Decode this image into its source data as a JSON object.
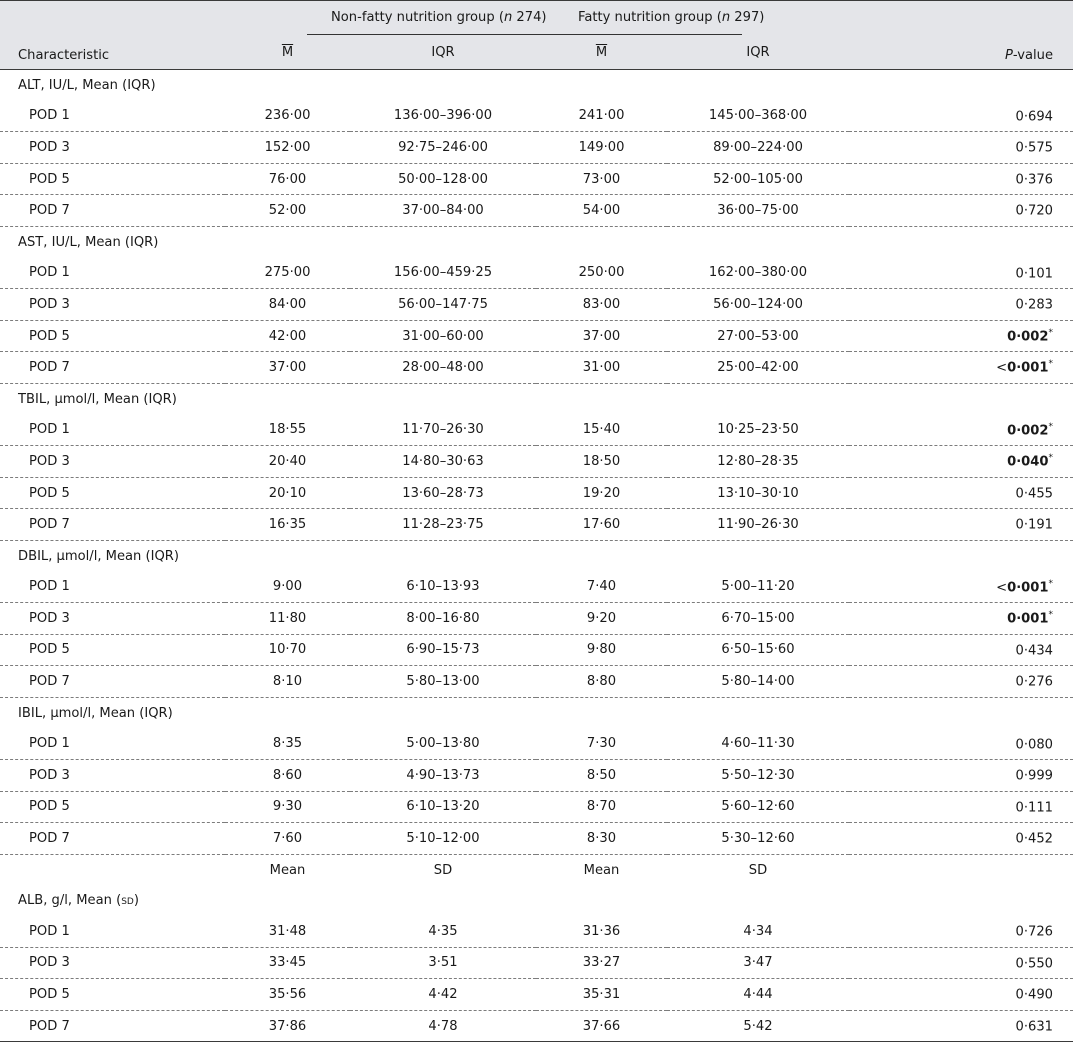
{
  "header": {
    "characteristic": "Characteristic",
    "group1": {
      "name": "Non-fatty nutrition group (",
      "n_label": "n",
      "n_value": " 274)"
    },
    "group2": {
      "name": "Fatty nutrition group (",
      "n_label": "n",
      "n_value": " 297)"
    },
    "sub_m": "M",
    "sub_iqr": "IQR",
    "pvalue_italic": "P",
    "pvalue_rest": "-value"
  },
  "sections": [
    {
      "label": "ALT, IU/L, Mean (IQR)",
      "rows": [
        {
          "label": "POD 1",
          "m1": "236·00",
          "iqr1": "136·00–396·00",
          "m2": "241·00",
          "iqr2": "145·00–368·00",
          "lt": "",
          "p": "0·694",
          "sig": false,
          "star": ""
        },
        {
          "label": "POD 3",
          "m1": "152·00",
          "iqr1": "92·75–246·00",
          "m2": "149·00",
          "iqr2": "89·00–224·00",
          "lt": "",
          "p": "0·575",
          "sig": false,
          "star": ""
        },
        {
          "label": "POD 5",
          "m1": "76·00",
          "iqr1": "50·00–128·00",
          "m2": "73·00",
          "iqr2": "52·00–105·00",
          "lt": "",
          "p": "0·376",
          "sig": false,
          "star": ""
        },
        {
          "label": "POD 7",
          "m1": "52·00",
          "iqr1": "37·00–84·00",
          "m2": "54·00",
          "iqr2": "36·00–75·00",
          "lt": "",
          "p": "0·720",
          "sig": false,
          "star": ""
        }
      ]
    },
    {
      "label": "AST, IU/L, Mean (IQR)",
      "rows": [
        {
          "label": "POD 1",
          "m1": "275·00",
          "iqr1": "156·00–459·25",
          "m2": "250·00",
          "iqr2": "162·00–380·00",
          "lt": "",
          "p": "0·101",
          "sig": false,
          "star": ""
        },
        {
          "label": "POD 3",
          "m1": "84·00",
          "iqr1": "56·00–147·75",
          "m2": "83·00",
          "iqr2": "56·00–124·00",
          "lt": "",
          "p": "0·283",
          "sig": false,
          "star": ""
        },
        {
          "label": "POD 5",
          "m1": "42·00",
          "iqr1": "31·00–60·00",
          "m2": "37·00",
          "iqr2": "27·00–53·00",
          "lt": "",
          "p": "0·002",
          "sig": true,
          "star": "*"
        },
        {
          "label": "POD 7",
          "m1": "37·00",
          "iqr1": "28·00–48·00",
          "m2": "31·00",
          "iqr2": "25·00–42·00",
          "lt": "<",
          "p": "0·001",
          "sig": true,
          "star": "*"
        }
      ]
    },
    {
      "label": "TBIL, µmol/l, Mean (IQR)",
      "rows": [
        {
          "label": "POD 1",
          "m1": "18·55",
          "iqr1": "11·70–26·30",
          "m2": "15·40",
          "iqr2": "10·25–23·50",
          "lt": "",
          "p": "0·002",
          "sig": true,
          "star": "*"
        },
        {
          "label": "POD 3",
          "m1": "20·40",
          "iqr1": "14·80–30·63",
          "m2": "18·50",
          "iqr2": "12·80–28·35",
          "lt": "",
          "p": "0·040",
          "sig": true,
          "star": "*"
        },
        {
          "label": "POD 5",
          "m1": "20·10",
          "iqr1": "13·60–28·73",
          "m2": "19·20",
          "iqr2": "13·10–30·10",
          "lt": "",
          "p": "0·455",
          "sig": false,
          "star": ""
        },
        {
          "label": "POD 7",
          "m1": "16·35",
          "iqr1": "11·28–23·75",
          "m2": "17·60",
          "iqr2": "11·90–26·30",
          "lt": "",
          "p": "0·191",
          "sig": false,
          "star": ""
        }
      ]
    },
    {
      "label": "DBIL, µmol/l, Mean (IQR)",
      "rows": [
        {
          "label": "POD 1",
          "m1": "9·00",
          "iqr1": "6·10–13·93",
          "m2": "7·40",
          "iqr2": "5·00–11·20",
          "lt": "<",
          "p": "0·001",
          "sig": true,
          "star": "*"
        },
        {
          "label": "POD 3",
          "m1": "11·80",
          "iqr1": "8·00–16·80",
          "m2": "9·20",
          "iqr2": "6·70–15·00",
          "lt": "",
          "p": "0·001",
          "sig": true,
          "star": "*"
        },
        {
          "label": "POD 5",
          "m1": "10·70",
          "iqr1": "6·90–15·73",
          "m2": "9·80",
          "iqr2": "6·50–15·60",
          "lt": "",
          "p": "0·434",
          "sig": false,
          "star": ""
        },
        {
          "label": "POD 7",
          "m1": "8·10",
          "iqr1": "5·80–13·00",
          "m2": "8·80",
          "iqr2": "5·80–14·00",
          "lt": "",
          "p": "0·276",
          "sig": false,
          "star": ""
        }
      ]
    },
    {
      "label": "IBIL, µmol/l, Mean (IQR)",
      "rows": [
        {
          "label": "POD 1",
          "m1": "8·35",
          "iqr1": "5·00–13·80",
          "m2": "7·30",
          "iqr2": "4·60–11·30",
          "lt": "",
          "p": "0·080",
          "sig": false,
          "star": ""
        },
        {
          "label": "POD 3",
          "m1": "8·60",
          "iqr1": "4·90–13·73",
          "m2": "8·50",
          "iqr2": "5·50–12·30",
          "lt": "",
          "p": "0·999",
          "sig": false,
          "star": ""
        },
        {
          "label": "POD 5",
          "m1": "9·30",
          "iqr1": "6·10–13·20",
          "m2": "8·70",
          "iqr2": "5·60–12·60",
          "lt": "",
          "p": "0·111",
          "sig": false,
          "star": ""
        },
        {
          "label": "POD 7",
          "m1": "7·60",
          "iqr1": "5·10–12·00",
          "m2": "8·30",
          "iqr2": "5·30–12·60",
          "lt": "",
          "p": "0·452",
          "sig": false,
          "star": ""
        }
      ]
    }
  ],
  "subheader2": {
    "mean": "Mean",
    "sd": "SD"
  },
  "alb": {
    "label_prefix": "ALB, g/l, Mean (",
    "label_sd": "sd",
    "label_suffix": ")",
    "rows": [
      {
        "label": "POD 1",
        "m1": "31·48",
        "iqr1": "4·35",
        "m2": "31·36",
        "iqr2": "4·34",
        "lt": "",
        "p": "0·726",
        "sig": false,
        "star": ""
      },
      {
        "label": "POD 3",
        "m1": "33·45",
        "iqr1": "3·51",
        "m2": "33·27",
        "iqr2": "3·47",
        "lt": "",
        "p": "0·550",
        "sig": false,
        "star": ""
      },
      {
        "label": "POD 5",
        "m1": "35·56",
        "iqr1": "4·42",
        "m2": "35·31",
        "iqr2": "4·44",
        "lt": "",
        "p": "0·490",
        "sig": false,
        "star": ""
      },
      {
        "label": "POD 7",
        "m1": "37·86",
        "iqr1": "4·78",
        "m2": "37·66",
        "iqr2": "5·42",
        "lt": "",
        "p": "0·631",
        "sig": false,
        "star": ""
      }
    ]
  }
}
